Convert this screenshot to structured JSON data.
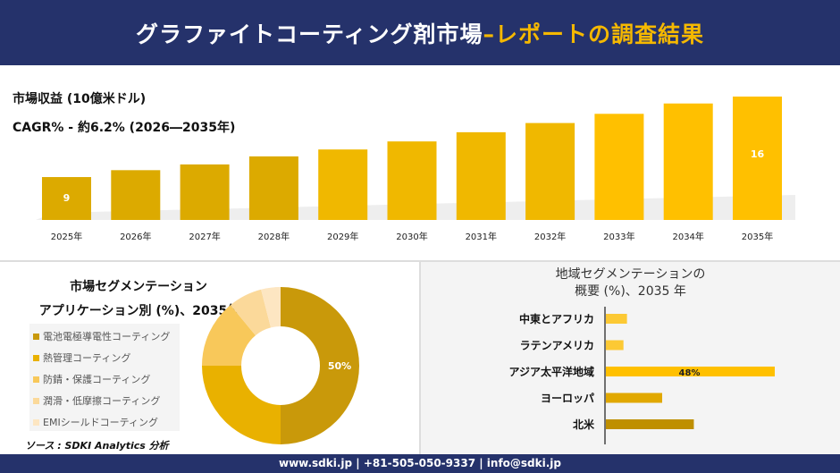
{
  "header": {
    "title_main": "グラファイトコーティング剤市場",
    "title_accent": " –レポートの調査結果"
  },
  "colors": {
    "navy": "#25326b",
    "accent": "#f5b800"
  },
  "chart_data": [
    {
      "type": "bar",
      "subtitle1": "市場収益 (10億米ドル)",
      "subtitle2": "CAGR% - 約6.2% (2026―2035年)",
      "categories": [
        "2025年",
        "2026年",
        "2027年",
        "2028年",
        "2029年",
        "2030年",
        "2031年",
        "2032年",
        "2033年",
        "2034年",
        "2035年"
      ],
      "values": [
        9,
        9.6,
        10.1,
        10.8,
        11.4,
        12.1,
        12.9,
        13.7,
        14.5,
        15.4,
        16
      ],
      "data_labels": {
        "0": "9",
        "10": "16"
      }
    },
    {
      "type": "pie",
      "title1": "市場セグメンテーション",
      "title2": "アプリケーション別 (%)、2035年",
      "labels": [
        "電池電極導電性コーティング",
        "熱管理コーティング",
        "防錆・保護コーティング",
        "潤滑・低摩擦コーティング",
        "EMIシールドコーティング"
      ],
      "values": [
        50,
        25,
        14,
        7,
        4
      ],
      "colors": [
        "#c9990a",
        "#e9b100",
        "#f8c85a",
        "#fbd99a",
        "#fde6c2"
      ],
      "data_label": "50%"
    },
    {
      "type": "bar",
      "orientation": "horizontal",
      "title1": "地域セグメンテーションの",
      "title2": "概要 (%)、2035 年",
      "categories": [
        "中東とアフリカ",
        "ラテンアメリカ",
        "アジア太平洋地域",
        "ヨーロッパ",
        "北米"
      ],
      "values": [
        6,
        5,
        48,
        16,
        25
      ],
      "colors": [
        "#fcc934",
        "#fcc934",
        "#ffc000",
        "#e1a800",
        "#bf8f00"
      ],
      "data_label": "48%"
    }
  ],
  "source": "ソース : SDKI Analytics 分析",
  "footer": "www.sdki.jp | +81-505-050-9337 | info@sdki.jp"
}
